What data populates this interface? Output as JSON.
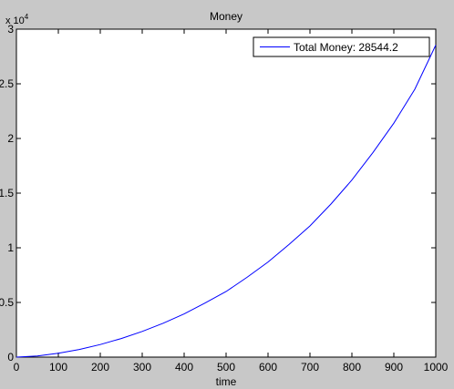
{
  "chart_data": {
    "type": "line",
    "title": "Money",
    "xlabel": "time",
    "ylabel": "",
    "xlim": [
      0,
      1000
    ],
    "ylim": [
      0,
      30000
    ],
    "y_exponent_label": "x 10",
    "y_exponent_power": "4",
    "x_ticks": [
      0,
      100,
      200,
      300,
      400,
      500,
      600,
      700,
      800,
      900,
      1000
    ],
    "x_tick_labels": [
      "0",
      "100",
      "200",
      "300",
      "400",
      "500",
      "600",
      "700",
      "800",
      "900",
      "1000"
    ],
    "y_ticks": [
      0,
      5000,
      10000,
      15000,
      20000,
      25000,
      30000
    ],
    "y_tick_labels": [
      "0",
      "0.5",
      "1",
      "1.5",
      "2",
      "2.5",
      "3"
    ],
    "grid": false,
    "legend_position": "top-right",
    "series": [
      {
        "name": "Total Money: 28544.2",
        "color": "#0000ff",
        "x": [
          0,
          50,
          100,
          150,
          200,
          250,
          300,
          350,
          400,
          450,
          500,
          550,
          600,
          650,
          700,
          750,
          800,
          850,
          900,
          950,
          1000
        ],
        "y": [
          0,
          110,
          350,
          700,
          1150,
          1700,
          2350,
          3100,
          3950,
          4950,
          6000,
          7300,
          8700,
          10300,
          12000,
          14000,
          16200,
          18700,
          21400,
          24500,
          28544.2
        ]
      }
    ]
  }
}
